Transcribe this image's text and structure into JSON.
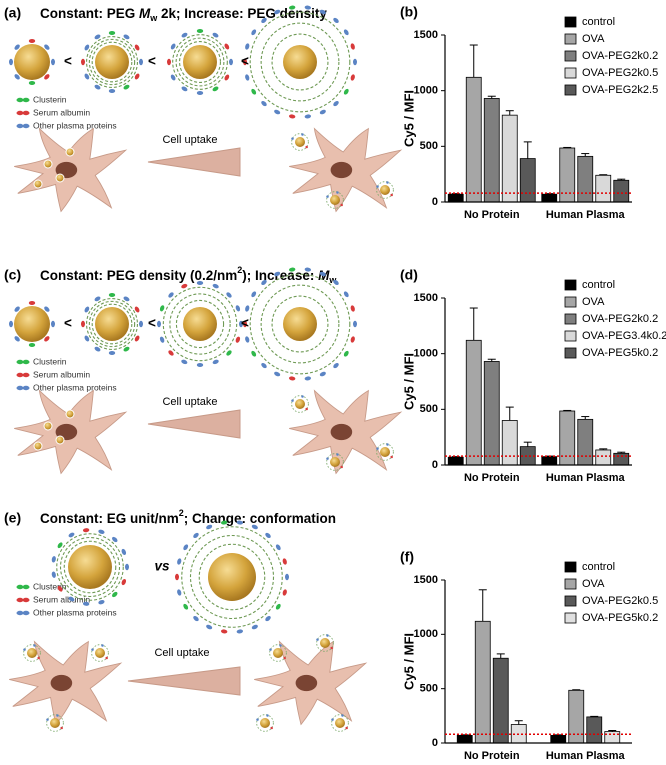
{
  "panels": [
    {
      "label": "(a)",
      "title": [
        {
          "text": "Constant: PEG "
        },
        {
          "text": "M",
          "italic": true
        },
        {
          "text": "w",
          "sub": true
        },
        {
          "text": " 2k; Increase: PEG density"
        }
      ],
      "legend": [
        "Clusterin",
        "Serum albumin",
        "Other plasma proteins"
      ],
      "arrow": "Cell uptake",
      "comparators": [
        "<",
        "<",
        "<"
      ]
    },
    {
      "label": "(c)",
      "title": [
        {
          "text": "Constant: PEG density (0.2/nm"
        },
        {
          "text": "2",
          "sup": true
        },
        {
          "text": "); Increase: "
        },
        {
          "text": "M",
          "italic": true
        },
        {
          "text": "w",
          "sub": true
        }
      ],
      "legend": [
        "Clusterin",
        "Serum albumin",
        "Other plasma proteins"
      ],
      "arrow": "Cell uptake",
      "comparators": [
        "<",
        "<",
        "<"
      ]
    },
    {
      "label": "(e)",
      "title": [
        {
          "text": "Constant: EG unit/nm"
        },
        {
          "text": "2",
          "sup": true
        },
        {
          "text": "; Change: conformation"
        }
      ],
      "legend": [
        "Clusterin",
        "Serum albumin",
        "Other plasma proteins"
      ],
      "arrow": "Cell uptake",
      "comparators": [
        "vs"
      ]
    }
  ],
  "chart_data": [
    {
      "type": "bar",
      "panel_label": "(b)",
      "ylabel": "Cy5 / MFI",
      "categories": [
        "No Protein",
        "Human Plasma"
      ],
      "ylim": [
        0,
        1500
      ],
      "yticks": [
        0,
        500,
        1000,
        1500
      ],
      "legend": "upper right",
      "reference_line": {
        "value": 80,
        "color": "#e00000"
      },
      "series": [
        {
          "name": "control",
          "color": "#000000",
          "values": [
            70,
            70
          ],
          "errors": [
            5,
            5
          ]
        },
        {
          "name": "OVA",
          "color": "#a6a6a6",
          "values": [
            1120,
            485
          ],
          "errors": [
            290,
            5
          ]
        },
        {
          "name": "OVA-PEG2k0.2",
          "color": "#7f7f7f",
          "values": [
            930,
            410
          ],
          "errors": [
            20,
            25
          ]
        },
        {
          "name": "OVA-PEG2k0.5",
          "color": "#d9d9d9",
          "values": [
            780,
            240
          ],
          "errors": [
            40,
            5
          ]
        },
        {
          "name": "OVA-PEG2k2.5",
          "color": "#595959",
          "values": [
            390,
            195
          ],
          "errors": [
            150,
            10
          ]
        }
      ]
    },
    {
      "type": "bar",
      "panel_label": "(d)",
      "ylabel": "Cy5 / MFI",
      "categories": [
        "No Protein",
        "Human Plasma"
      ],
      "ylim": [
        0,
        1500
      ],
      "yticks": [
        0,
        500,
        1000,
        1500
      ],
      "legend": "upper right",
      "reference_line": {
        "value": 80,
        "color": "#e00000"
      },
      "series": [
        {
          "name": "control",
          "color": "#000000",
          "values": [
            70,
            75
          ],
          "errors": [
            5,
            5
          ]
        },
        {
          "name": "OVA",
          "color": "#a6a6a6",
          "values": [
            1120,
            485
          ],
          "errors": [
            290,
            5
          ]
        },
        {
          "name": "OVA-PEG2k0.2",
          "color": "#7f7f7f",
          "values": [
            930,
            410
          ],
          "errors": [
            20,
            25
          ]
        },
        {
          "name": "OVA-PEG3.4k0.2",
          "color": "#d9d9d9",
          "values": [
            400,
            135
          ],
          "errors": [
            120,
            10
          ]
        },
        {
          "name": "OVA-PEG5k0.2",
          "color": "#595959",
          "values": [
            165,
            105
          ],
          "errors": [
            40,
            10
          ]
        }
      ]
    },
    {
      "type": "bar",
      "panel_label": "(f)",
      "ylabel": "Cy5 / MFI",
      "categories": [
        "No Protein",
        "Human Plasma"
      ],
      "ylim": [
        0,
        1500
      ],
      "yticks": [
        0,
        500,
        1000,
        1500
      ],
      "legend": "upper right",
      "reference_line": {
        "value": 80,
        "color": "#e00000"
      },
      "series": [
        {
          "name": "control",
          "color": "#000000",
          "values": [
            70,
            70
          ],
          "errors": [
            5,
            5
          ]
        },
        {
          "name": "OVA",
          "color": "#a6a6a6",
          "values": [
            1120,
            485
          ],
          "errors": [
            290,
            5
          ]
        },
        {
          "name": "OVA-PEG2k0.5",
          "color": "#595959",
          "values": [
            780,
            240
          ],
          "errors": [
            40,
            5
          ]
        },
        {
          "name": "OVA-PEG5k0.2",
          "color": "#e0e0e0",
          "values": [
            170,
            105
          ],
          "errors": [
            35,
            10
          ]
        }
      ]
    }
  ]
}
